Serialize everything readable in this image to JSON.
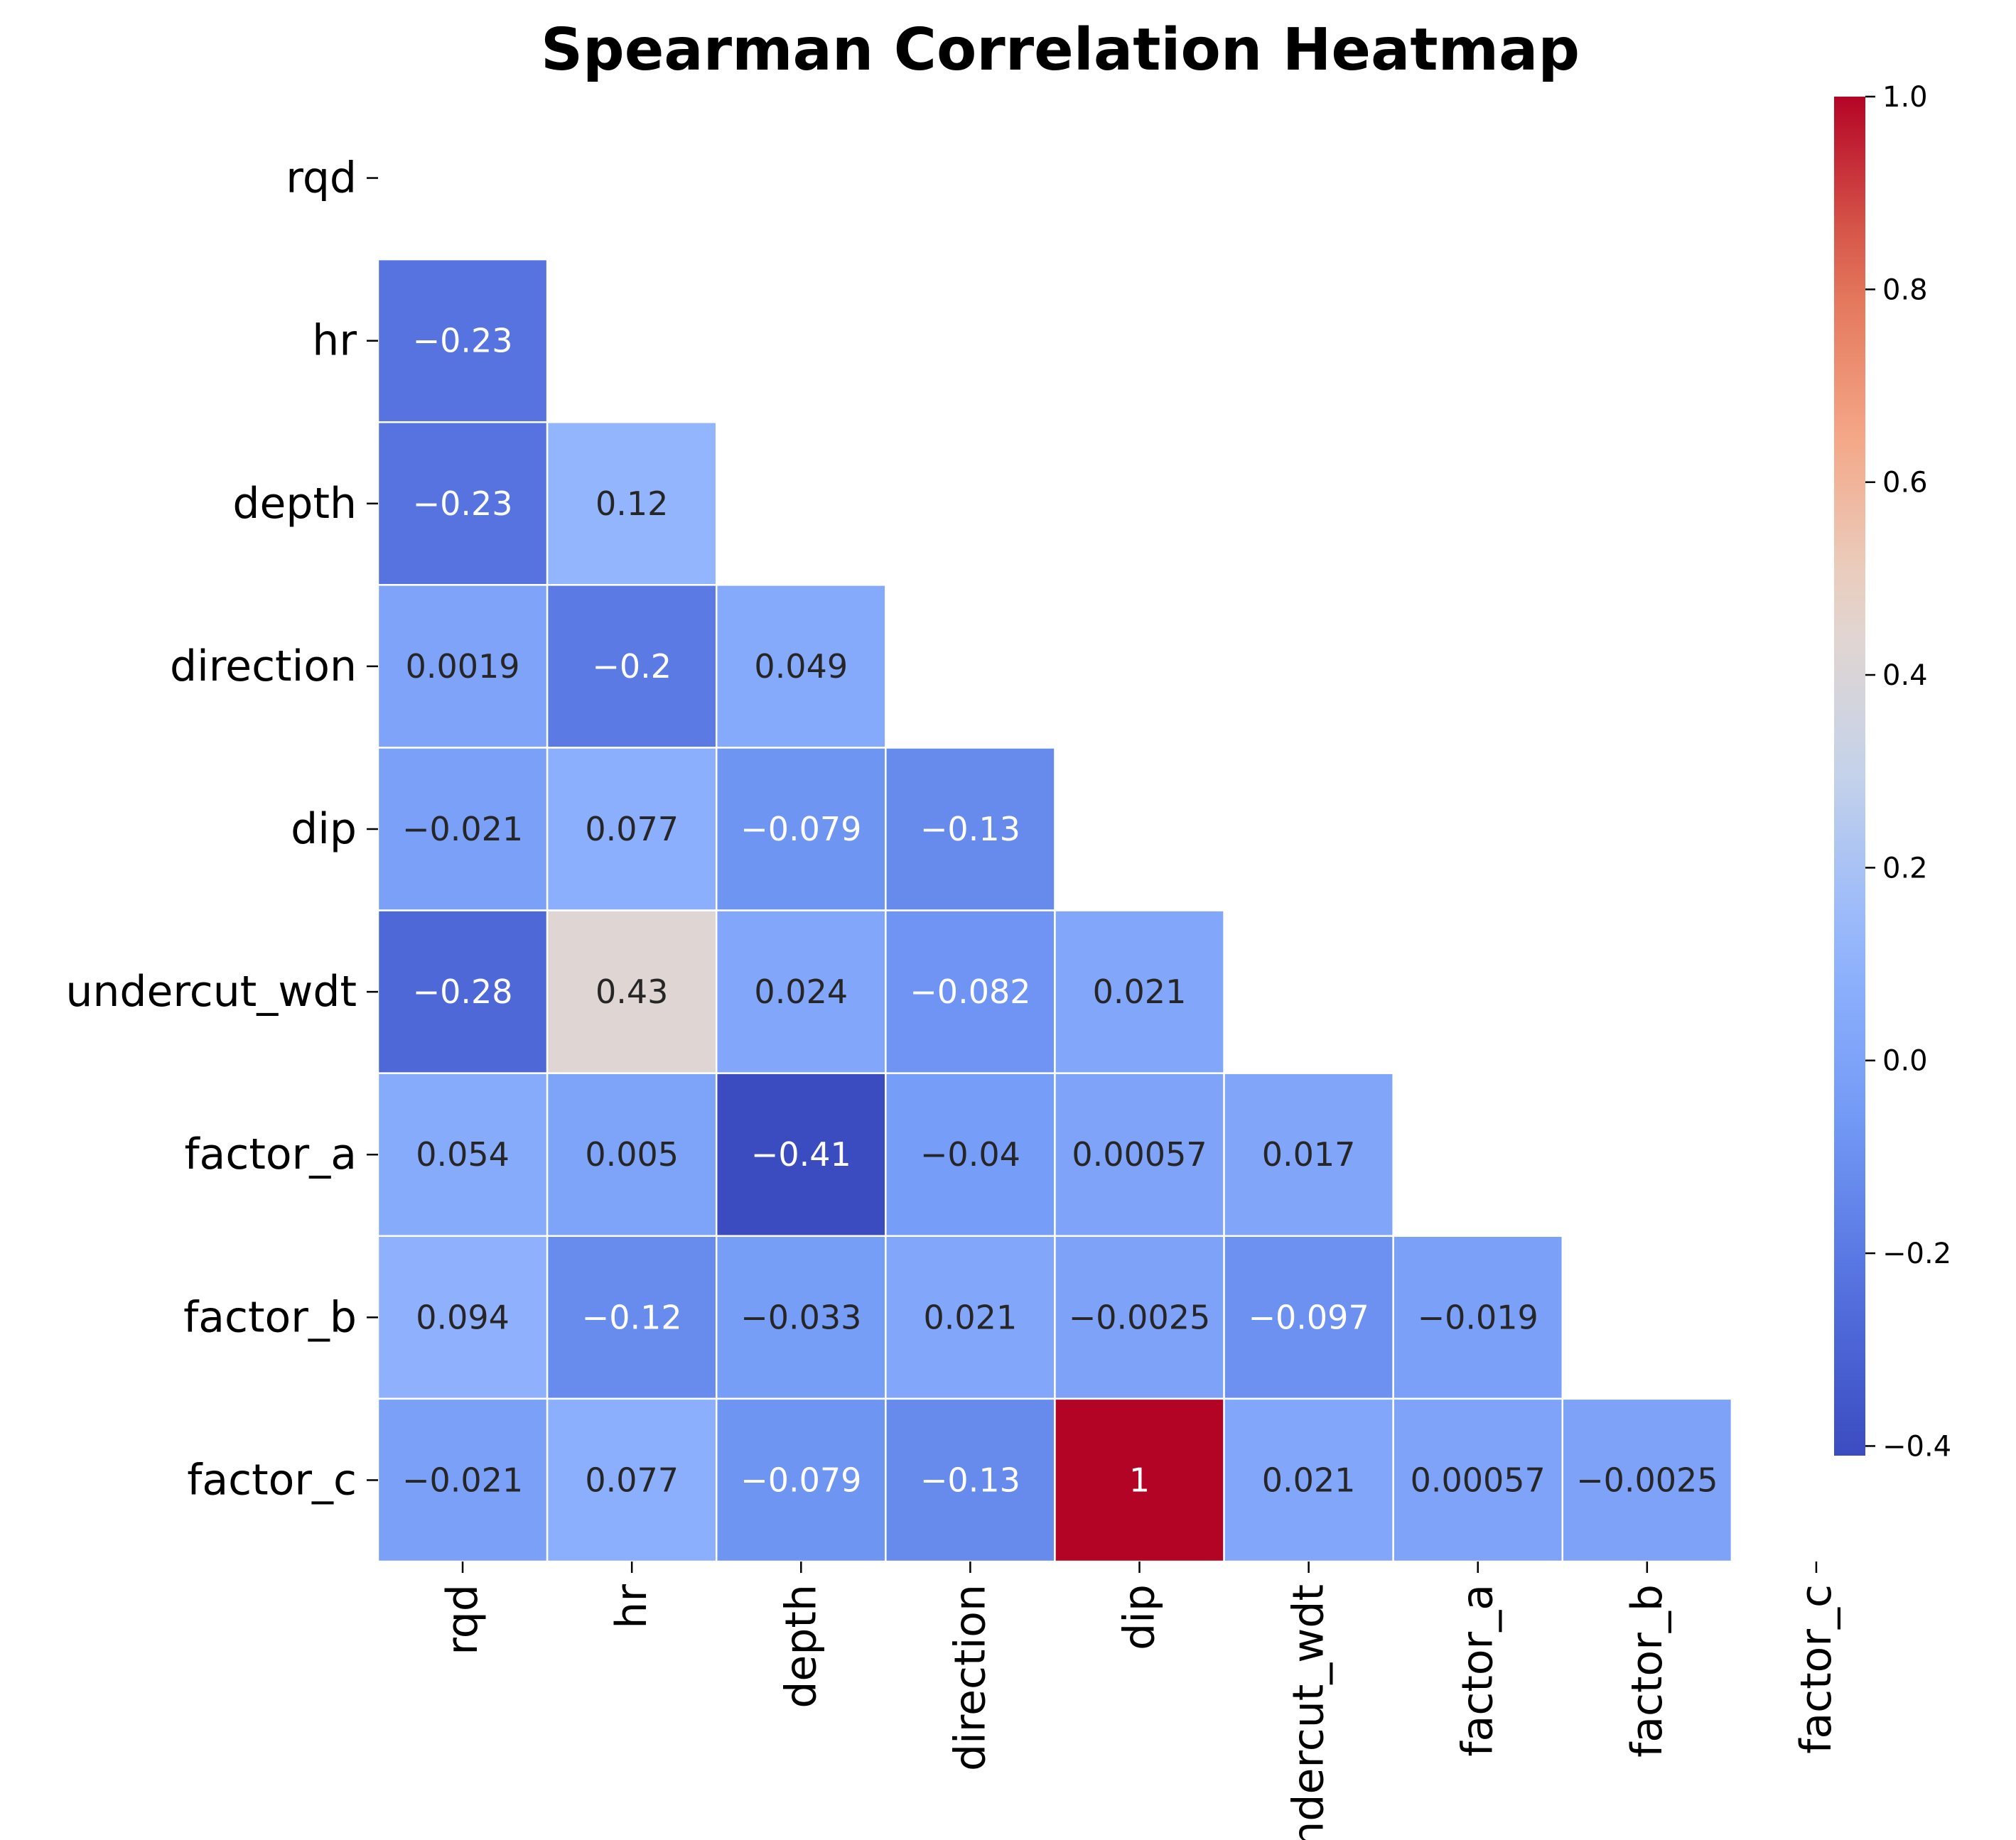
{
  "chart_data": {
    "type": "heatmap",
    "title": "Spearman Correlation Heatmap",
    "xlabel": "",
    "ylabel": "",
    "row_labels": [
      "rqd",
      "hr",
      "depth",
      "direction",
      "dip",
      "undercut_wdt",
      "factor_a",
      "factor_b",
      "factor_c"
    ],
    "col_labels": [
      "rqd",
      "hr",
      "depth",
      "direction",
      "dip",
      "undercut_wdt",
      "factor_a",
      "factor_b",
      "factor_c"
    ],
    "mask": "upper-triangle-including-diagonal",
    "rows": [
      [],
      [
        "−0.23"
      ],
      [
        "−0.23",
        "0.12"
      ],
      [
        "0.0019",
        "−0.2",
        "0.049"
      ],
      [
        "−0.021",
        "0.077",
        "−0.079",
        "−0.13"
      ],
      [
        "−0.28",
        "0.43",
        "0.024",
        "−0.082",
        "0.021"
      ],
      [
        "0.054",
        "0.005",
        "−0.41",
        "−0.04",
        "0.00057",
        "0.017"
      ],
      [
        "0.094",
        "−0.12",
        "−0.033",
        "0.021",
        "−0.0025",
        "−0.097",
        "−0.019"
      ],
      [
        "−0.021",
        "0.077",
        "−0.079",
        "−0.13",
        "1",
        "0.021",
        "0.00057",
        "−0.0025"
      ]
    ],
    "colormap": "coolwarm",
    "vmin": -0.41,
    "vmax": 1.0,
    "colorbar_ticks": [
      "1.0",
      "0.8",
      "0.6",
      "0.4",
      "0.2",
      "0.0",
      "−0.2",
      "−0.4"
    ],
    "grid": false
  }
}
